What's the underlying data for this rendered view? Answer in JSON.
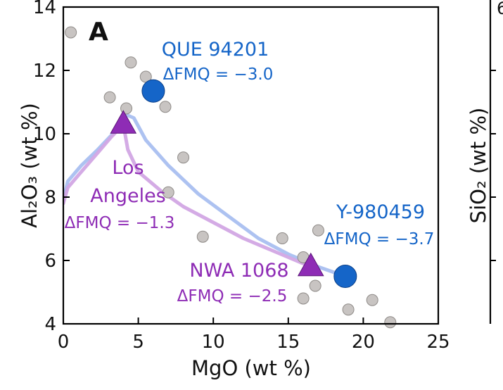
{
  "chart_data": {
    "type": "scatter",
    "panel_label": "A",
    "xlabel": "MgO (wt %)",
    "ylabel": "Al₂O₃ (wt %)",
    "xlim": [
      0,
      25
    ],
    "ylim": [
      4,
      14
    ],
    "x_ticks": [
      0,
      5,
      10,
      15,
      20,
      25
    ],
    "y_ticks": [
      4,
      6,
      8,
      10,
      12,
      14
    ],
    "grid": false,
    "gray_points": [
      [
        0.5,
        13.2
      ],
      [
        4.5,
        12.25
      ],
      [
        5.5,
        11.8
      ],
      [
        3.1,
        11.15
      ],
      [
        4.2,
        10.8
      ],
      [
        6.8,
        10.85
      ],
      [
        8.0,
        9.25
      ],
      [
        7.0,
        8.15
      ],
      [
        9.3,
        6.75
      ],
      [
        14.6,
        6.7
      ],
      [
        17.0,
        6.95
      ],
      [
        16.0,
        6.1
      ],
      [
        16.8,
        5.2
      ],
      [
        16.0,
        4.8
      ],
      [
        20.6,
        4.75
      ],
      [
        19.0,
        4.45
      ],
      [
        21.8,
        4.05
      ]
    ],
    "samples": [
      {
        "name": "QUE 94201",
        "annotation": "ΔFMQ = −3.0",
        "x": 6.0,
        "y": 11.35,
        "marker": "circle",
        "color": "#1565c8"
      },
      {
        "name": "Los Angeles",
        "annotation": "ΔFMQ = −1.3",
        "x": 4.0,
        "y": 10.3,
        "marker": "triangle",
        "color": "#8e2cb5"
      },
      {
        "name": "NWA 1068",
        "annotation": "ΔFMQ = −2.5",
        "x": 16.5,
        "y": 5.8,
        "marker": "triangle",
        "color": "#8e2cb5"
      },
      {
        "name": "Y-980459",
        "annotation": "ΔFMQ = −3.7",
        "x": 18.8,
        "y": 5.5,
        "marker": "circle",
        "color": "#1565c8"
      }
    ],
    "series": [
      {
        "color": "#a9bff0",
        "points": [
          [
            0,
            7.9
          ],
          [
            0.3,
            8.5
          ],
          [
            1.2,
            9.0
          ],
          [
            2.3,
            9.5
          ],
          [
            3.3,
            10.0
          ],
          [
            4.2,
            10.6
          ],
          [
            4.7,
            10.5
          ],
          [
            5.5,
            9.8
          ],
          [
            7.0,
            9.0
          ],
          [
            9.0,
            8.1
          ],
          [
            11.0,
            7.4
          ],
          [
            13.0,
            6.7
          ],
          [
            15.0,
            6.2
          ],
          [
            17.0,
            5.8
          ],
          [
            18.8,
            5.5
          ]
        ]
      },
      {
        "color": "#d2a6e4",
        "points": [
          [
            0,
            7.8
          ],
          [
            0.3,
            8.3
          ],
          [
            1.2,
            8.8
          ],
          [
            2.3,
            9.4
          ],
          [
            3.2,
            9.9
          ],
          [
            4.0,
            10.3
          ],
          [
            4.3,
            9.5
          ],
          [
            5.0,
            8.8
          ],
          [
            6.5,
            8.2
          ],
          [
            8.0,
            7.7
          ],
          [
            10.0,
            7.2
          ],
          [
            12.0,
            6.7
          ],
          [
            14.0,
            6.3
          ],
          [
            16.5,
            5.8
          ]
        ]
      }
    ],
    "colors": {
      "gray_fill": "#c8c4c2",
      "gray_stroke": "#8f8b88",
      "axis": "#000000",
      "text": "#111111"
    }
  }
}
